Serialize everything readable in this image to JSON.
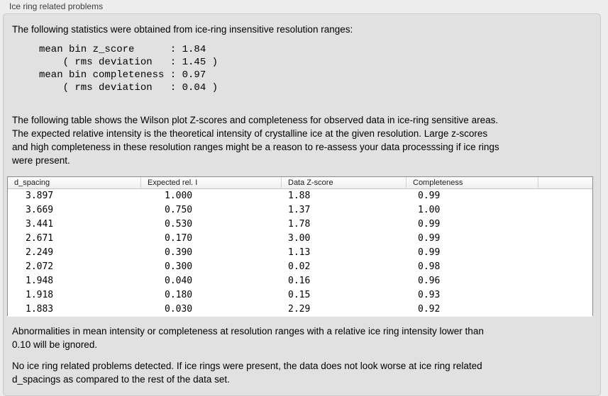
{
  "panel": {
    "title": "Ice ring related problems",
    "intro": "The following statistics were obtained from ice-ring insensitive resolution ranges:",
    "stats_block": "mean bin z_score      : 1.84\n    ( rms deviation   : 1.45 )\nmean bin completeness : 0.97\n    ( rms deviation   : 0.04 )",
    "table_description": "The following table shows the Wilson plot Z-scores and completeness for observed data in ice-ring sensitive areas.\nThe expected relative intensity is the theoretical intensity of crystalline ice at the given resolution. Large z-scores\nand high completeness in these resolution ranges might be a reason to re-assess your data processsing if ice rings\nwere present.",
    "note_abnormalities": "Abnormalities in mean intensity or completeness at resolution ranges with a relative ice ring intensity lower than\n0.10 will be ignored.",
    "conclusion": "No ice ring related problems detected. If ice rings were present, the data does not look worse at ice ring related\nd_spacings as compared to the rest of the data set."
  },
  "table": {
    "columns": [
      "d_spacing",
      "Expected rel. I",
      "Data Z-score",
      "Completeness"
    ],
    "rows": [
      [
        "3.897",
        "1.000",
        "1.88",
        "0.99"
      ],
      [
        "3.669",
        "0.750",
        "1.37",
        "1.00"
      ],
      [
        "3.441",
        "0.530",
        "1.78",
        "0.99"
      ],
      [
        "2.671",
        "0.170",
        "3.00",
        "0.99"
      ],
      [
        "2.249",
        "0.390",
        "1.13",
        "0.99"
      ],
      [
        "2.072",
        "0.300",
        "0.02",
        "0.98"
      ],
      [
        "1.948",
        "0.040",
        "0.16",
        "0.96"
      ],
      [
        "1.918",
        "0.180",
        "0.15",
        "0.93"
      ],
      [
        "1.883",
        "0.030",
        "2.29",
        "0.92"
      ]
    ]
  },
  "colors": {
    "page_bg": "#ededed",
    "panel_bg": "#e1e1e1",
    "panel_border": "#c8c8c8",
    "table_border": "#8a8a8a",
    "text": "#000000",
    "label_text": "#3c3c3c"
  }
}
